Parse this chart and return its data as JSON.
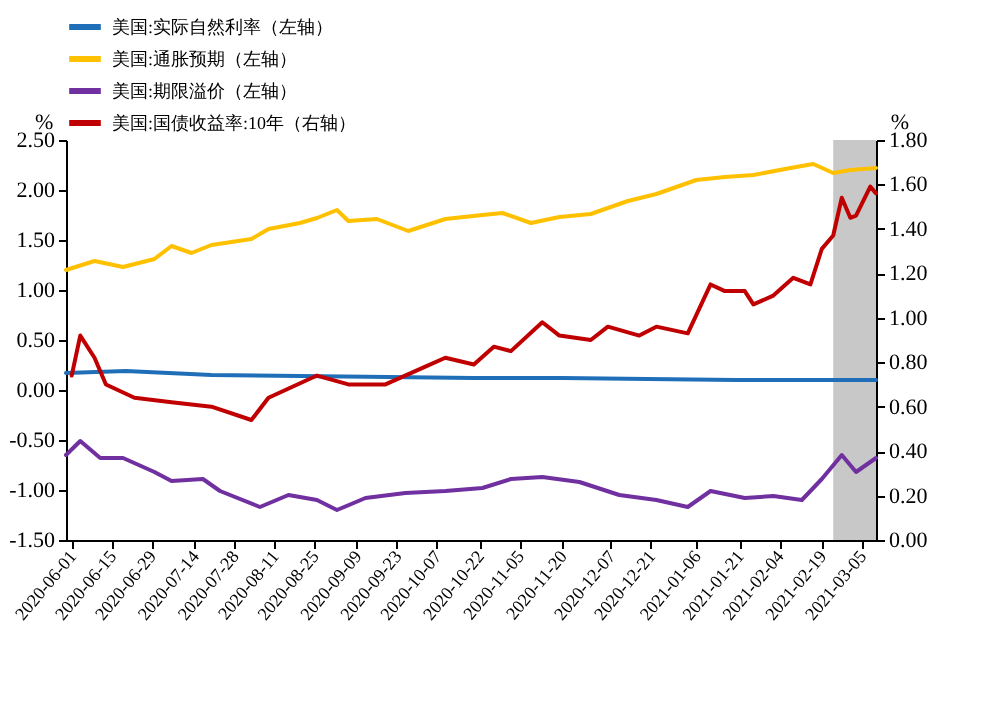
{
  "chart_data": {
    "type": "line",
    "ylabel": "%",
    "y2label": "%",
    "legend": "top",
    "xlim": [
      "2020-05-30",
      "2021-03-10"
    ],
    "xticks": [
      "2020-06-01",
      "2020-06-15",
      "2020-06-29",
      "2020-07-14",
      "2020-07-28",
      "2020-08-11",
      "2020-08-25",
      "2020-09-09",
      "2020-09-23",
      "2020-10-07",
      "2020-10-22",
      "2020-11-05",
      "2020-11-20",
      "2020-12-07",
      "2020-12-21",
      "2021-01-06",
      "2021-01-21",
      "2021-02-04",
      "2021-02-19",
      "2021-03-05"
    ],
    "ylim": [
      -1.5,
      2.5
    ],
    "yticks": [
      {
        "value": -1.5,
        "label": "-1.50"
      },
      {
        "value": -1,
        "label": "-1.00"
      },
      {
        "value": -0.5,
        "label": "-0.50"
      },
      {
        "value": 0,
        "label": "0.00"
      },
      {
        "value": 0.5,
        "label": "0.50"
      },
      {
        "value": 1,
        "label": "1.00"
      },
      {
        "value": 1.5,
        "label": "1.50"
      },
      {
        "value": 2,
        "label": "2.00"
      },
      {
        "value": 2.5,
        "label": "2.50"
      }
    ],
    "y2lim": [
      0,
      1.8
    ],
    "y2ticks": [
      {
        "value": 0,
        "label": "0.00"
      },
      {
        "value": 0.2,
        "label": "0.20"
      },
      {
        "value": 0.4,
        "label": "0.40"
      },
      {
        "value": 0.6,
        "label": "0.60"
      },
      {
        "value": 0.8,
        "label": "0.80"
      },
      {
        "value": 1,
        "label": "1.00"
      },
      {
        "value": 1.2,
        "label": "1.20"
      },
      {
        "value": 1.4,
        "label": "1.40"
      },
      {
        "value": 1.6,
        "label": "1.60"
      },
      {
        "value": 1.8,
        "label": "1.80"
      }
    ],
    "bands": [
      {
        "axis": "x",
        "from": "2021-02-23",
        "to": "2021-03-10",
        "color": "#c8c8c8"
      }
    ],
    "series": [
      {
        "name": "美国:实际自然利率（左轴）",
        "color": "#1f6fb8",
        "x": [
          "2020-05-30",
          "2020-06-20",
          "2020-07-20",
          "2020-08-20",
          "2020-09-20",
          "2020-10-20",
          "2020-11-20",
          "2020-12-20",
          "2021-01-20",
          "2021-02-20",
          "2021-03-10"
        ],
        "values": [
          0.17,
          0.19,
          0.15,
          0.14,
          0.13,
          0.12,
          0.12,
          0.11,
          0.1,
          0.1,
          0.1
        ]
      },
      {
        "name": "美国:通胀预期（左轴）",
        "color": "#ffc000",
        "x": [
          "2020-05-30",
          "2020-06-09",
          "2020-06-19",
          "2020-06-30",
          "2020-07-06",
          "2020-07-13",
          "2020-07-20",
          "2020-08-03",
          "2020-08-09",
          "2020-08-20",
          "2020-08-26",
          "2020-09-02",
          "2020-09-06",
          "2020-09-16",
          "2020-09-27",
          "2020-10-10",
          "2020-10-23",
          "2020-10-30",
          "2020-11-09",
          "2020-11-19",
          "2020-11-30",
          "2020-12-13",
          "2020-12-23",
          "2021-01-06",
          "2021-01-16",
          "2021-01-26",
          "2021-02-08",
          "2021-02-16",
          "2021-02-23",
          "2021-03-01",
          "2021-03-10"
        ],
        "values": [
          1.2,
          1.29,
          1.23,
          1.31,
          1.44,
          1.37,
          1.45,
          1.51,
          1.61,
          1.67,
          1.72,
          1.8,
          1.69,
          1.71,
          1.59,
          1.71,
          1.75,
          1.77,
          1.67,
          1.73,
          1.76,
          1.89,
          1.96,
          2.1,
          2.13,
          2.15,
          2.22,
          2.26,
          2.17,
          2.2,
          2.22
        ]
      },
      {
        "name": "美国:期限溢价（左轴）",
        "color": "#7030a0",
        "x": [
          "2020-05-30",
          "2020-06-04",
          "2020-06-11",
          "2020-06-19",
          "2020-06-30",
          "2020-07-06",
          "2020-07-17",
          "2020-07-23",
          "2020-08-06",
          "2020-08-16",
          "2020-08-26",
          "2020-09-02",
          "2020-09-12",
          "2020-09-26",
          "2020-10-10",
          "2020-10-23",
          "2020-11-02",
          "2020-11-13",
          "2020-11-26",
          "2020-12-10",
          "2020-12-23",
          "2021-01-03",
          "2021-01-11",
          "2021-01-23",
          "2021-02-02",
          "2021-02-12",
          "2021-02-19",
          "2021-02-26",
          "2021-03-03",
          "2021-03-10"
        ],
        "values": [
          -0.65,
          -0.51,
          -0.68,
          -0.68,
          -0.82,
          -0.91,
          -0.89,
          -1.01,
          -1.17,
          -1.05,
          -1.1,
          -1.2,
          -1.08,
          -1.03,
          -1.01,
          -0.98,
          -0.89,
          -0.87,
          -0.92,
          -1.05,
          -1.1,
          -1.17,
          -1.01,
          -1.08,
          -1.06,
          -1.1,
          -0.89,
          -0.65,
          -0.82,
          -0.68
        ]
      },
      {
        "name": "美国:国债收益率:10年（右轴）",
        "color": "#c00000",
        "axis": "y2",
        "x": [
          "2020-06-01",
          "2020-06-04",
          "2020-06-09",
          "2020-06-13",
          "2020-06-23",
          "2020-07-06",
          "2020-07-20",
          "2020-08-03",
          "2020-08-09",
          "2020-08-26",
          "2020-09-06",
          "2020-09-19",
          "2020-10-03",
          "2020-10-10",
          "2020-10-20",
          "2020-10-27",
          "2020-11-02",
          "2020-11-13",
          "2020-11-19",
          "2020-11-30",
          "2020-12-06",
          "2020-12-17",
          "2020-12-23",
          "2021-01-03",
          "2021-01-07",
          "2021-01-11",
          "2021-01-16",
          "2021-01-23",
          "2021-01-26",
          "2021-02-02",
          "2021-02-09",
          "2021-02-15",
          "2021-02-19",
          "2021-02-23",
          "2021-02-26",
          "2021-03-01",
          "2021-03-03",
          "2021-03-08",
          "2021-03-10"
        ],
        "values": [
          0.74,
          0.92,
          0.82,
          0.7,
          0.64,
          0.62,
          0.6,
          0.54,
          0.64,
          0.74,
          0.7,
          0.7,
          0.78,
          0.82,
          0.79,
          0.87,
          0.85,
          0.98,
          0.92,
          0.9,
          0.96,
          0.92,
          0.96,
          0.93,
          1.04,
          1.15,
          1.12,
          1.12,
          1.06,
          1.1,
          1.18,
          1.15,
          1.31,
          1.37,
          1.54,
          1.45,
          1.46,
          1.59,
          1.56
        ]
      }
    ]
  }
}
